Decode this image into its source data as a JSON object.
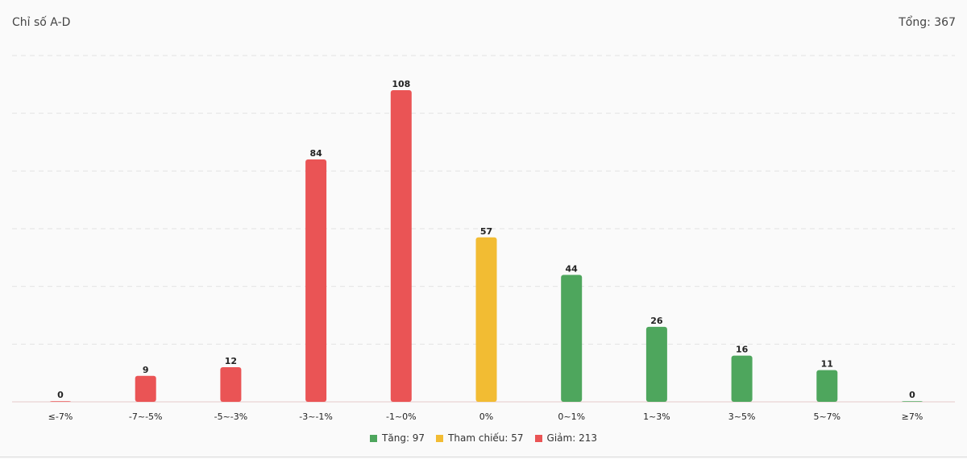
{
  "header": {
    "title": "Chỉ số A-D",
    "total": "Tổng: 367"
  },
  "colors": {
    "up": "#4ea65d",
    "ref": "#f2bc33",
    "down": "#ea5455"
  },
  "chart_data": {
    "type": "bar",
    "title": "Chỉ số A-D",
    "categories": [
      "≤-7%",
      "-7~-5%",
      "-5~-3%",
      "-3~-1%",
      "-1~0%",
      "0%",
      "0~1%",
      "1~3%",
      "3~5%",
      "5~7%",
      "≥7%"
    ],
    "values": [
      0,
      9,
      12,
      84,
      108,
      57,
      44,
      26,
      16,
      11,
      0
    ],
    "groups": [
      "down",
      "down",
      "down",
      "down",
      "down",
      "ref",
      "up",
      "up",
      "up",
      "up",
      "up"
    ],
    "ylim": [
      0,
      120
    ],
    "grid": true,
    "legend": "bottom",
    "legend_entries": [
      {
        "key": "up",
        "label": "Tăng: 97"
      },
      {
        "key": "ref",
        "label": "Tham chiếu: 57"
      },
      {
        "key": "down",
        "label": "Giảm: 213"
      }
    ]
  }
}
